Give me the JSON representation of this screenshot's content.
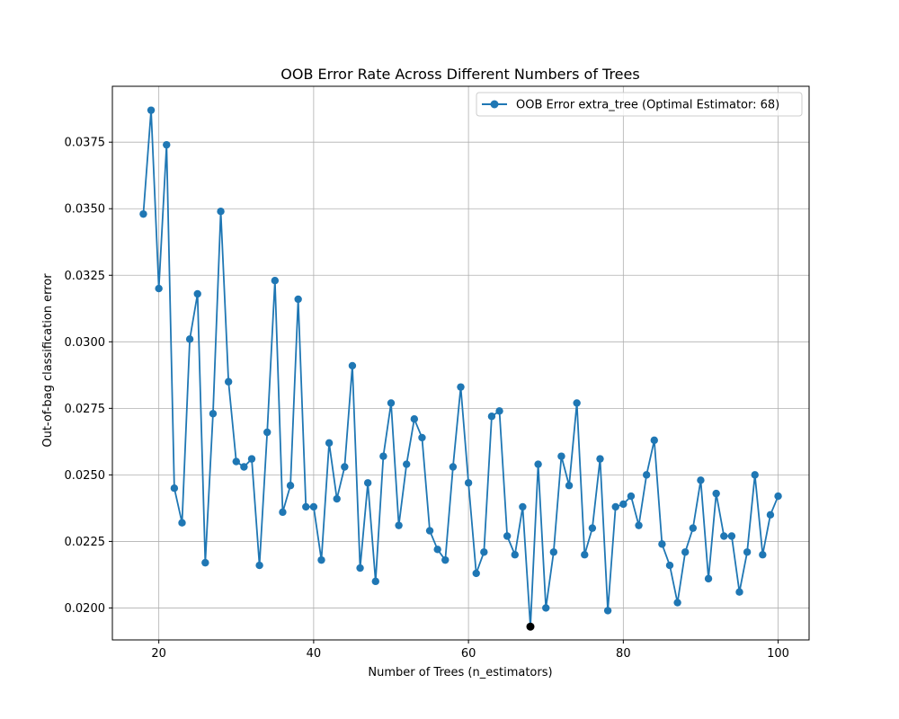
{
  "chart_data": {
    "type": "line",
    "title": "OOB Error Rate Across Different Numbers of Trees",
    "xlabel": "Number of Trees (n_estimators)",
    "ylabel": "Out-of-bag classification error",
    "xlim": [
      14,
      104
    ],
    "ylim": [
      0.0188,
      0.0396
    ],
    "x_ticks": [
      20,
      40,
      60,
      80,
      100
    ],
    "x_tick_labels": [
      "20",
      "40",
      "60",
      "80",
      "100"
    ],
    "y_ticks": [
      0.02,
      0.0225,
      0.025,
      0.0275,
      0.03,
      0.0325,
      0.035,
      0.0375
    ],
    "y_tick_labels": [
      "0.0200",
      "0.0225",
      "0.0250",
      "0.0275",
      "0.0300",
      "0.0325",
      "0.0350",
      "0.0375"
    ],
    "grid": true,
    "legend_position": "top-right",
    "series": [
      {
        "name": "OOB Error extra_tree (Optimal Estimator: 68)",
        "color": "#1f77b4",
        "marker": "circle",
        "x": [
          18,
          19,
          20,
          21,
          22,
          23,
          24,
          25,
          26,
          27,
          28,
          29,
          30,
          31,
          32,
          33,
          34,
          35,
          36,
          37,
          38,
          39,
          40,
          41,
          42,
          43,
          44,
          45,
          46,
          47,
          48,
          49,
          50,
          51,
          52,
          53,
          54,
          55,
          56,
          57,
          58,
          59,
          60,
          61,
          62,
          63,
          64,
          65,
          66,
          67,
          68,
          69,
          70,
          71,
          72,
          73,
          74,
          75,
          76,
          77,
          78,
          79,
          80,
          81,
          82,
          83,
          84,
          85,
          86,
          87,
          88,
          89,
          90,
          91,
          92,
          93,
          94,
          95,
          96,
          97,
          98,
          99,
          100
        ],
        "values": [
          0.0348,
          0.0387,
          0.032,
          0.0374,
          0.0245,
          0.0232,
          0.0301,
          0.0318,
          0.0217,
          0.0273,
          0.0349,
          0.0285,
          0.0255,
          0.0253,
          0.0256,
          0.0216,
          0.0266,
          0.0323,
          0.0236,
          0.0246,
          0.0316,
          0.0238,
          0.0238,
          0.0218,
          0.0262,
          0.0241,
          0.0253,
          0.0291,
          0.0215,
          0.0247,
          0.021,
          0.0257,
          0.0277,
          0.0231,
          0.0254,
          0.0271,
          0.0264,
          0.0229,
          0.0222,
          0.0218,
          0.0253,
          0.0283,
          0.0247,
          0.0213,
          0.0221,
          0.0272,
          0.0274,
          0.0227,
          0.022,
          0.0238,
          0.0193,
          0.0254,
          0.02,
          0.0221,
          0.0257,
          0.0246,
          0.0277,
          0.022,
          0.023,
          0.0256,
          0.0199,
          0.0238,
          0.0239,
          0.0242,
          0.0231,
          0.025,
          0.0263,
          0.0224,
          0.0216,
          0.0202,
          0.0221,
          0.023,
          0.0248,
          0.0211,
          0.0243,
          0.0227,
          0.0227,
          0.0206,
          0.0221,
          0.025,
          0.022,
          0.0235,
          0.0242
        ]
      }
    ],
    "highlight_point": {
      "x": 68,
      "y": 0.0193,
      "color": "#000000"
    }
  }
}
